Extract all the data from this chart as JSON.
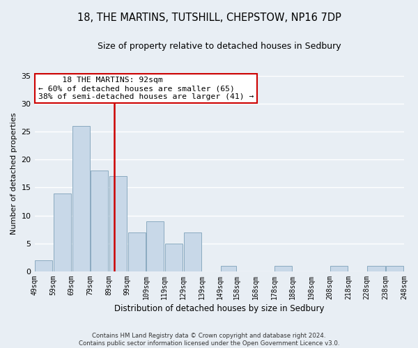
{
  "title": "18, THE MARTINS, TUTSHILL, CHEPSTOW, NP16 7DP",
  "subtitle": "Size of property relative to detached houses in Sedbury",
  "xlabel": "Distribution of detached houses by size in Sedbury",
  "ylabel": "Number of detached properties",
  "bar_color": "#c8d8e8",
  "bar_edge_color": "#8aaac0",
  "property_line_value": 92,
  "property_line_color": "#cc0000",
  "annotation_title": "18 THE MARTINS: 92sqm",
  "annotation_line1": "← 60% of detached houses are smaller (65)",
  "annotation_line2": "38% of semi-detached houses are larger (41) →",
  "annotation_box_facecolor": "#ffffff",
  "annotation_box_edgecolor": "#cc0000",
  "bins": [
    49,
    59,
    69,
    79,
    89,
    99,
    109,
    119,
    129,
    139,
    149,
    158,
    168,
    178,
    188,
    198,
    208,
    218,
    228,
    238,
    248
  ],
  "counts": [
    2,
    14,
    26,
    18,
    17,
    7,
    9,
    5,
    7,
    0,
    1,
    0,
    0,
    1,
    0,
    0,
    1,
    0,
    1,
    1
  ],
  "tick_labels": [
    "49sqm",
    "59sqm",
    "69sqm",
    "79sqm",
    "89sqm",
    "99sqm",
    "109sqm",
    "119sqm",
    "129sqm",
    "139sqm",
    "149sqm",
    "158sqm",
    "168sqm",
    "178sqm",
    "188sqm",
    "198sqm",
    "208sqm",
    "218sqm",
    "228sqm",
    "238sqm",
    "248sqm"
  ],
  "ylim": [
    0,
    35
  ],
  "yticks": [
    0,
    5,
    10,
    15,
    20,
    25,
    30,
    35
  ],
  "footer_line1": "Contains HM Land Registry data © Crown copyright and database right 2024.",
  "footer_line2": "Contains public sector information licensed under the Open Government Licence v3.0.",
  "bg_color": "#e8eef4",
  "grid_color": "#ffffff"
}
